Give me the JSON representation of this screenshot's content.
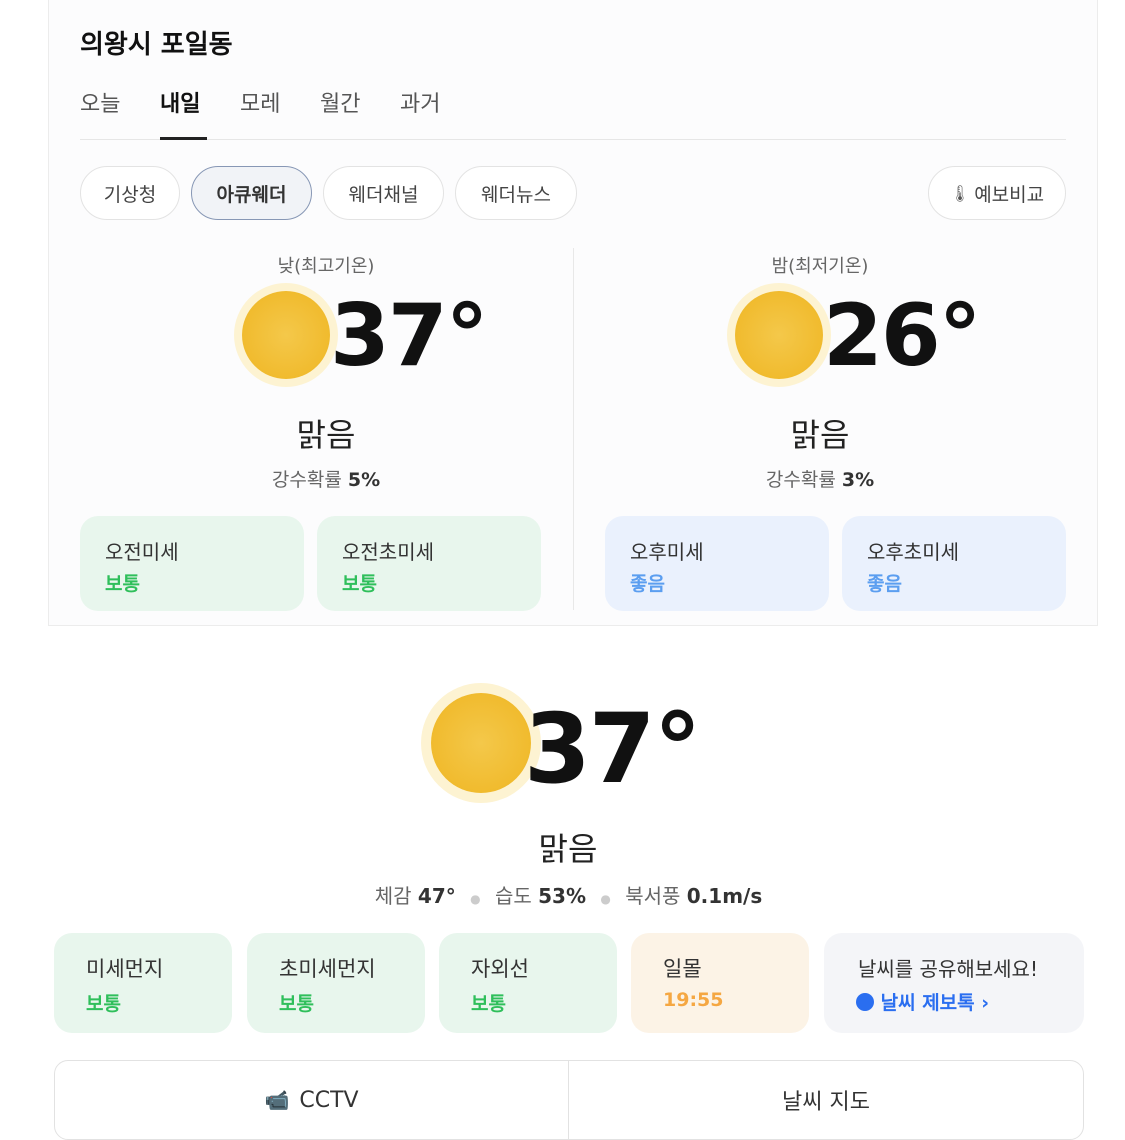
{
  "location": "의왕시 포일동",
  "tabs": [
    "오늘",
    "내일",
    "모레",
    "월간",
    "과거"
  ],
  "active_tab": "내일",
  "providers": [
    "기상청",
    "아큐웨더",
    "웨더채널",
    "웨더뉴스"
  ],
  "selected_provider": "아큐웨더",
  "compare_label": "예보비교",
  "day": {
    "label": "낮(최고기온)",
    "temp": "37°",
    "condition": "맑음",
    "rain_label": "강수확률",
    "rain_value": "5%"
  },
  "night": {
    "label": "밤(최저기온)",
    "temp": "26°",
    "condition": "맑음",
    "rain_label": "강수확률",
    "rain_value": "3%"
  },
  "dust": [
    {
      "label": "오전미세",
      "value": "보통"
    },
    {
      "label": "오전초미세",
      "value": "보통"
    },
    {
      "label": "오후미세",
      "value": "좋음"
    },
    {
      "label": "오후초미세",
      "value": "좋음"
    }
  ],
  "current": {
    "temp": "37°",
    "condition": "맑음",
    "feels_label": "체감",
    "feels": "47°",
    "humidity_label": "습도",
    "humidity": "53%",
    "wind_label": "북서풍",
    "wind": "0.1m/s"
  },
  "tiles": [
    {
      "label": "미세먼지",
      "value": "보통"
    },
    {
      "label": "초미세먼지",
      "value": "보통"
    },
    {
      "label": "자외선",
      "value": "보통"
    },
    {
      "label": "일몰",
      "value": "19:55"
    }
  ],
  "share": {
    "text": "날씨를 공유해보세요!",
    "link": "날씨 제보톡"
  },
  "buttons": {
    "cctv": "CCTV",
    "map": "날씨 지도"
  },
  "colors": {
    "good": "#5b9ef0",
    "normal": "#2fbf5b",
    "sunset": "#f5a742",
    "sun": "#f0b92a"
  }
}
